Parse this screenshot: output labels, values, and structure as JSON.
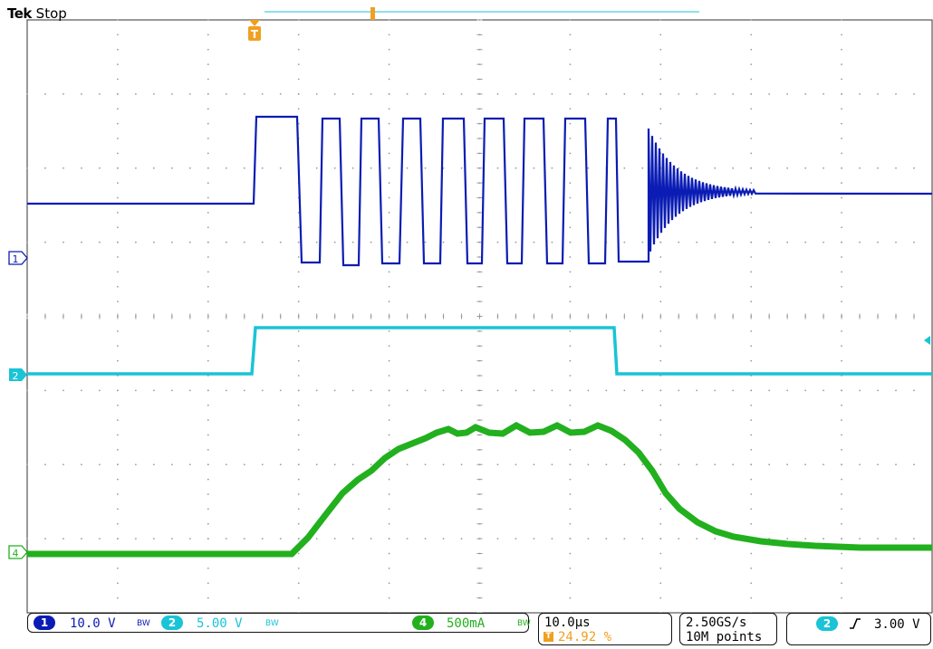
{
  "header": {
    "brand": "Tek",
    "run_state": "Stop"
  },
  "channels": [
    {
      "number": "1",
      "scale": "10.0 V",
      "bandwidth_mark": "BW",
      "color": "#0a1cb4"
    },
    {
      "number": "2",
      "scale": "5.00 V",
      "bandwidth_mark": "BW",
      "color": "#19c4d6"
    },
    {
      "number": "4",
      "scale": "500mA",
      "bandwidth_mark": "BW",
      "color": "#22b01e"
    }
  ],
  "trace_colors": {
    "ch1": "#0a1cb4",
    "ch2": "#19c4d6",
    "ch4": "#22b01e",
    "trigger": "#f0a020",
    "grid": "#9a9a9a"
  },
  "timebase": {
    "scale": "10.0µs",
    "trigger_position": "24.92 %"
  },
  "acquisition": {
    "sample_rate": "2.50GS/s",
    "record_length": "10M points"
  },
  "trigger": {
    "source": "2",
    "slope_icon": "rising-edge-icon",
    "level": "3.00 V"
  },
  "markers": {
    "trigger_glyph": "T",
    "ch1": "1",
    "ch2": "2",
    "ch4": "4"
  }
}
